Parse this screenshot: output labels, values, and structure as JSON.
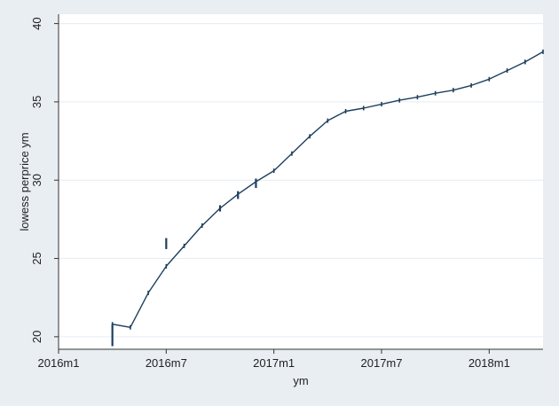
{
  "chart_data": {
    "type": "line",
    "title": "",
    "xlabel": "ym",
    "ylabel": "lowess perprice ym",
    "x_axis": {
      "range": [
        "2016-01",
        "2018-04"
      ],
      "ticks": [
        "2016-01",
        "2016-07",
        "2017-01",
        "2017-07",
        "2018-01"
      ],
      "tick_labels": [
        "2016m1",
        "2016m7",
        "2017m1",
        "2017m7",
        "2018m1"
      ]
    },
    "y_axis": {
      "range": [
        19.2,
        40.6
      ],
      "ticks": [
        20,
        25,
        30,
        35,
        40
      ],
      "tick_labels": [
        "20",
        "25",
        "30",
        "35",
        "40"
      ]
    },
    "grid": true,
    "legend": "none",
    "colors": {
      "line": "#1f3f5f",
      "background": "#e8eef2",
      "plot_area": "#ffffff",
      "grid": "#e6ecf0",
      "axis": "#333333"
    },
    "series": [
      {
        "x": [
          "2016-04",
          "2016-05",
          "2016-06",
          "2016-07",
          "2016-08",
          "2016-09",
          "2016-10",
          "2016-11",
          "2016-12",
          "2017-01",
          "2017-02",
          "2017-03",
          "2017-04",
          "2017-05",
          "2017-06",
          "2017-07",
          "2017-08",
          "2017-09",
          "2017-10",
          "2017-11",
          "2017-12",
          "2018-01",
          "2018-02",
          "2018-03"
        ],
        "y": [
          20.8,
          20.6,
          22.8,
          24.5,
          25.8,
          27.1,
          28.2,
          29.1,
          29.9,
          30.6,
          31.7,
          32.8,
          33.8,
          34.4,
          34.6,
          34.85,
          35.1,
          35.3,
          35.55,
          35.75,
          36.05,
          36.45,
          37.0,
          37.55
        ]
      },
      {
        "x": [
          "2018-03",
          "2018-04"
        ],
        "y": [
          37.55,
          38.2
        ]
      }
    ],
    "band_marks": [
      {
        "x": "2016-04",
        "ymin": 19.4,
        "ymax": 20.8
      },
      {
        "x": "2016-07",
        "ymin": 25.6,
        "ymax": 26.3
      },
      {
        "x": "2016-10",
        "ymin": 28.0,
        "ymax": 28.4
      },
      {
        "x": "2016-11",
        "ymin": 28.8,
        "ymax": 29.3
      },
      {
        "x": "2016-12",
        "ymin": 29.5,
        "ymax": 30.1
      }
    ]
  }
}
